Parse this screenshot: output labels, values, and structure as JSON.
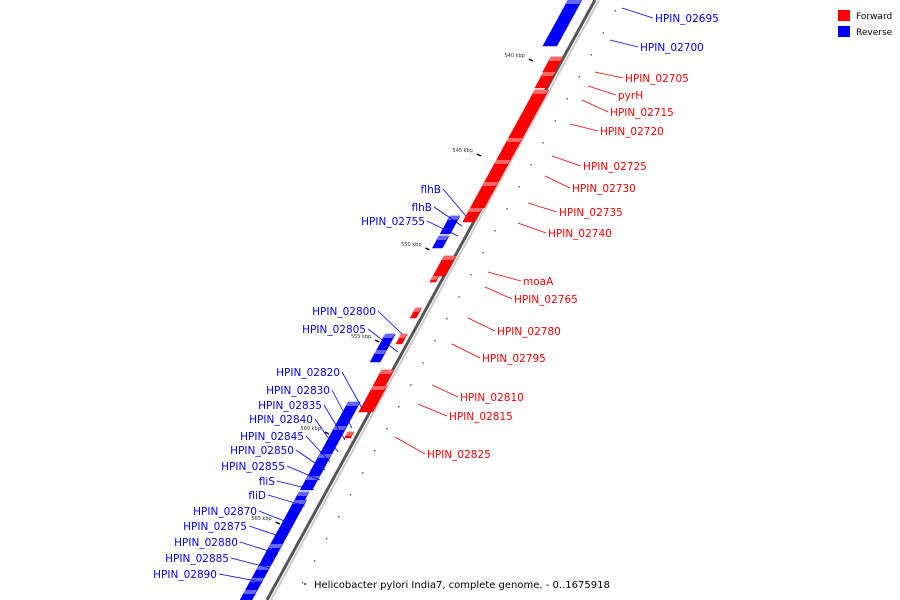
{
  "caption": "Helicobacter pylori India7, complete genome. - 0..1675918",
  "legend": [
    {
      "label": "Forward",
      "color": "#ff0000"
    },
    {
      "label": "Reverse",
      "color": "#0000ff"
    }
  ],
  "scale_marks": [
    "540 kbp",
    "545 kbp",
    "550 kbp",
    "555 kbp",
    "560 kbp",
    "565 kbp"
  ],
  "forward_genes": [
    "HPIN_02705",
    "pyrH",
    "HPIN_02715",
    "HPIN_02720",
    "HPIN_02725",
    "HPIN_02730",
    "HPIN_02735",
    "HPIN_02740",
    "moaA",
    "HPIN_02765",
    "HPIN_02780",
    "HPIN_02795",
    "HPIN_02810",
    "HPIN_02815",
    "HPIN_02825"
  ],
  "reverse_genes_right": [
    "HPIN_02695",
    "HPIN_02700"
  ],
  "reverse_genes_left": [
    "flhB",
    "flhB",
    "HPIN_02755",
    "HPIN_02800",
    "HPIN_02805",
    "HPIN_02820",
    "HPIN_02830",
    "HPIN_02835",
    "HPIN_02840",
    "HPIN_02845",
    "HPIN_02850",
    "HPIN_02855",
    "fliS",
    "fliD",
    "HPIN_02870",
    "HPIN_02875",
    "HPIN_02880",
    "HPIN_02885",
    "HPIN_02890"
  ],
  "colors": {
    "forward": "#ff0000",
    "reverse": "#0000ff",
    "axis": "#888888"
  }
}
